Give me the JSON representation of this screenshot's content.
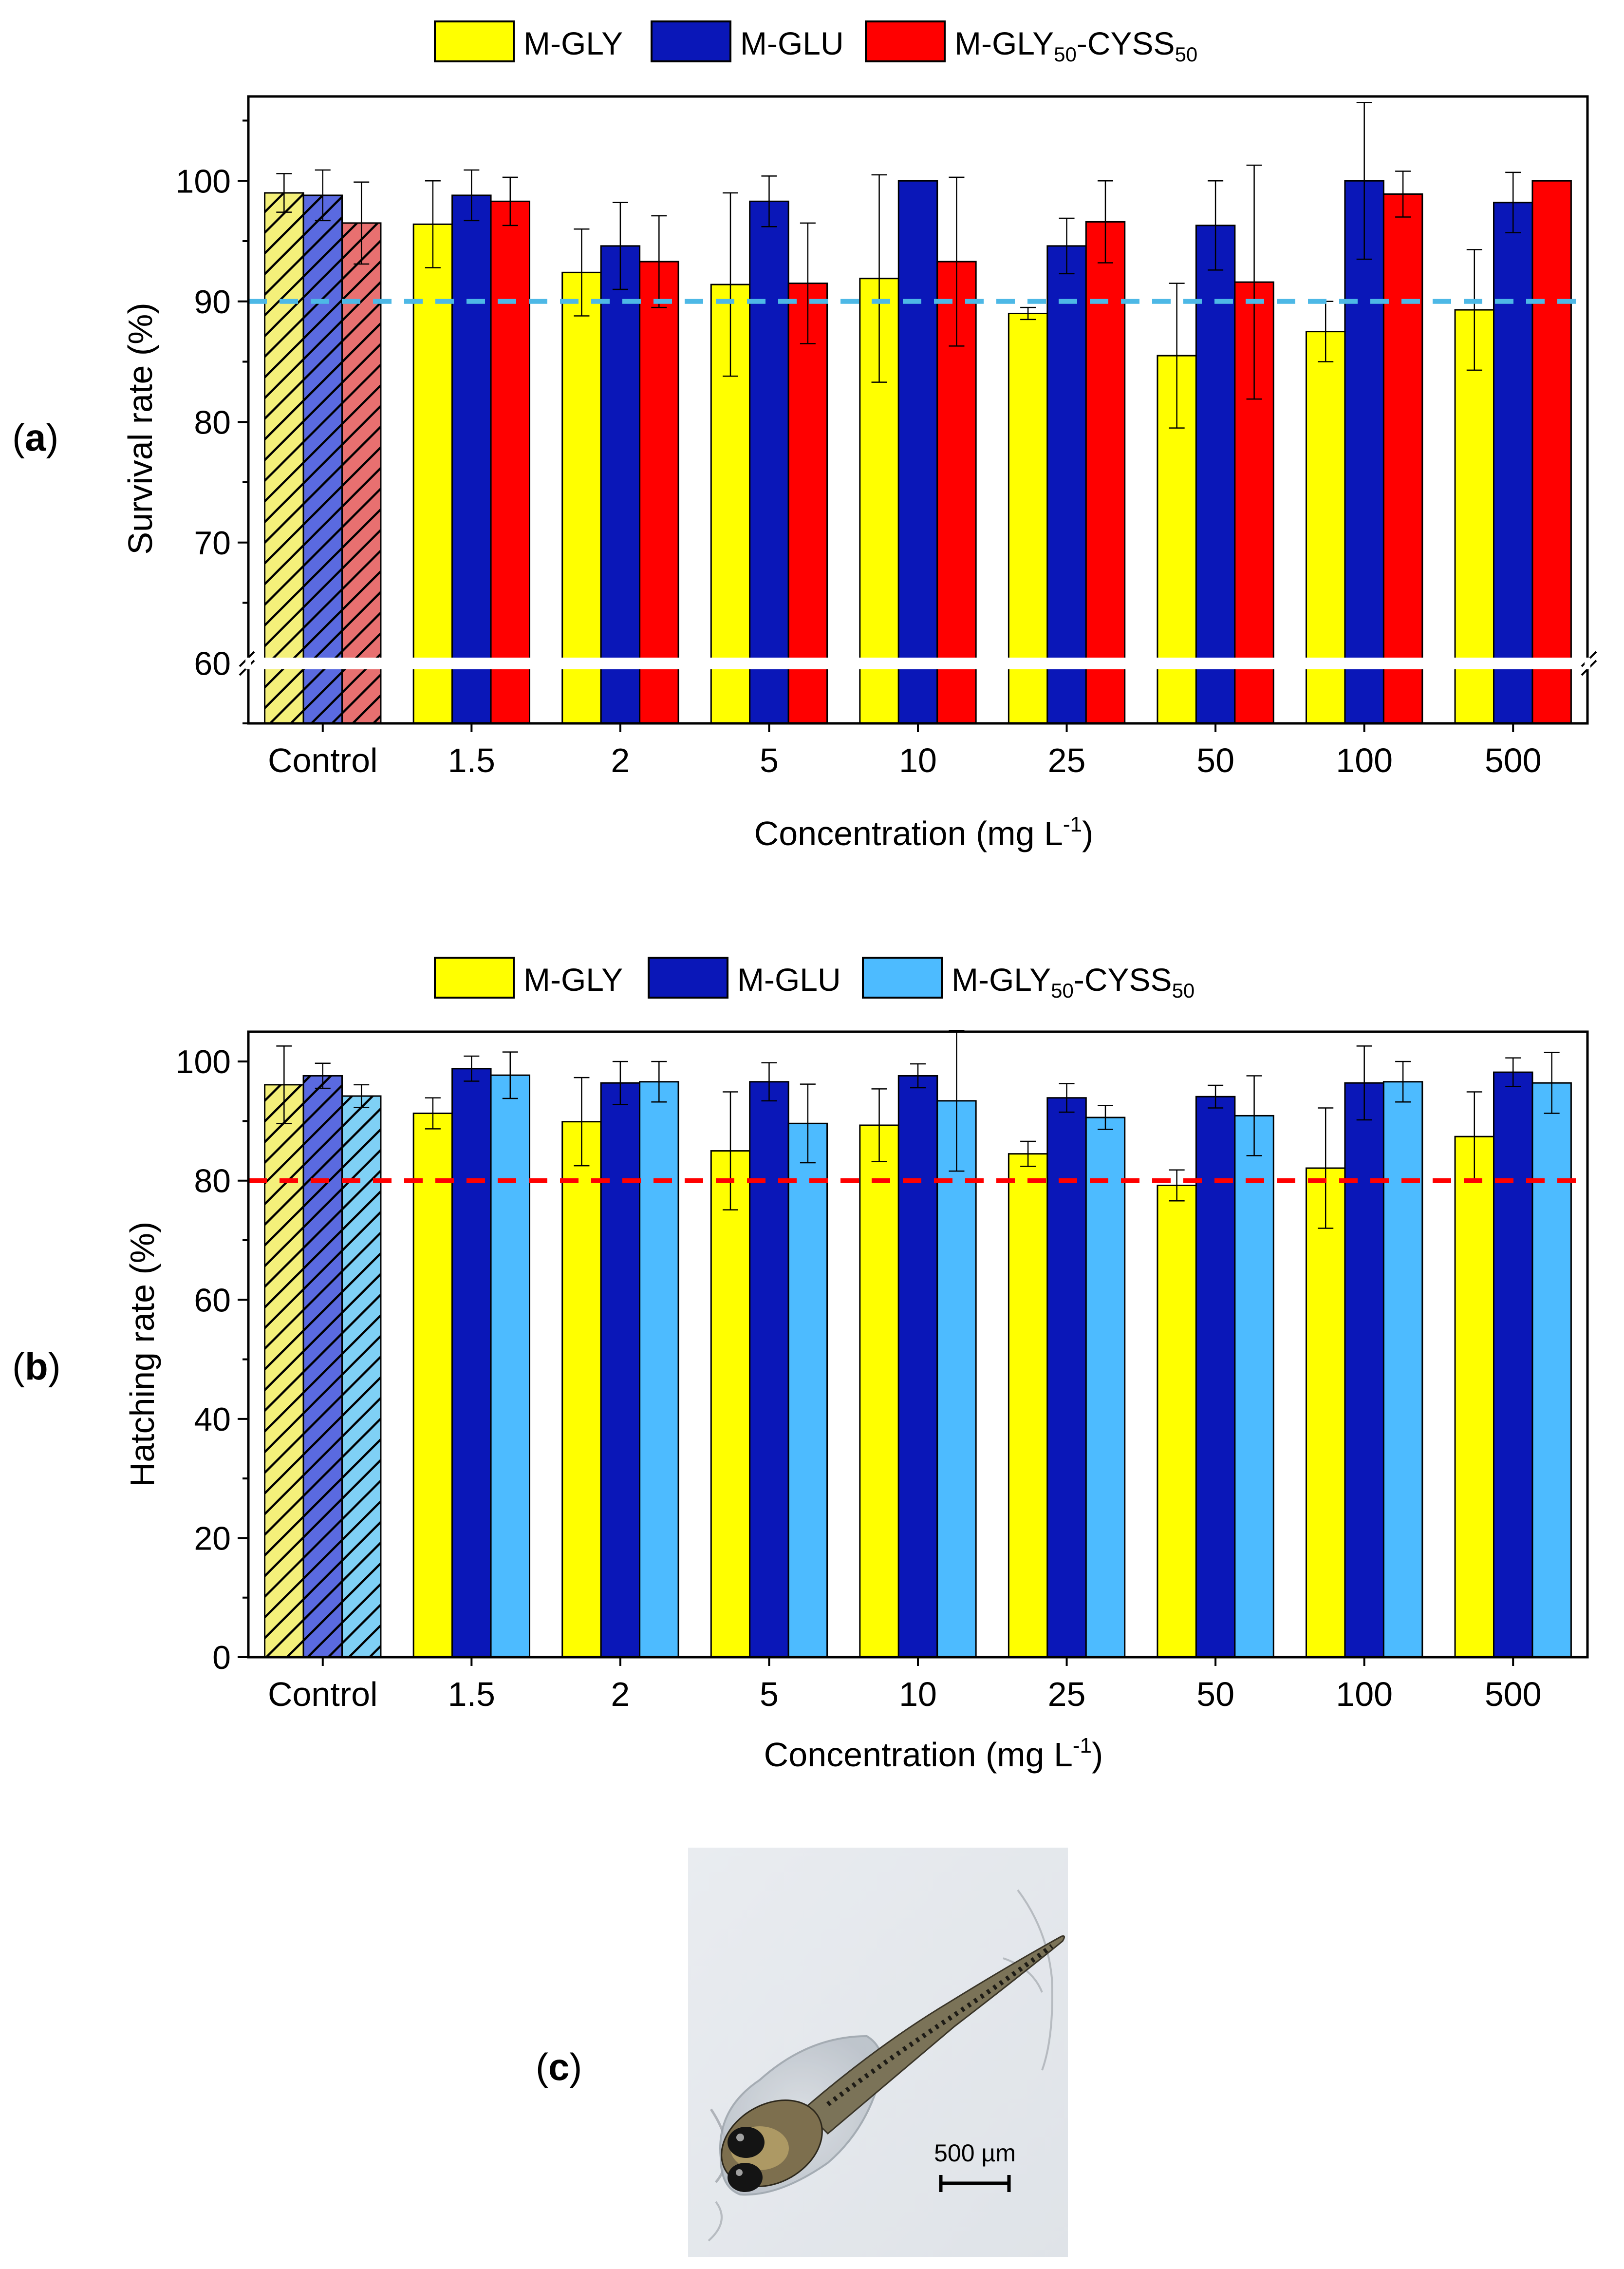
{
  "colors": {
    "m_gly": "#ffff00",
    "m_glu": "#0a17b8",
    "m_gly_cyss_red": "#ff0000",
    "m_gly_cyss_blue": "#4dbbff",
    "ref_line_a": "#4db8e6",
    "ref_line_b": "#ff0000",
    "ctrl_yellow": "#f4f07a",
    "ctrl_blue": "#5a6ae0",
    "ctrl_red": "#e87070",
    "ctrl_lightblue": "#7fd0f5"
  },
  "chart_data": [
    {
      "type": "bar",
      "panel_label": "a",
      "xlabel": "Concentration (mg L",
      "xlabel_sup": "-1",
      "xlabel_close": ")",
      "ylabel": "Survival rate (%)",
      "ylim": [
        55,
        107
      ],
      "axis_break_at": 60,
      "yticks": [
        60,
        70,
        80,
        90,
        100
      ],
      "reference_line": 90,
      "legend_position": "top",
      "categories": [
        "Control",
        "1.5",
        "2",
        "5",
        "10",
        "25",
        "50",
        "100",
        "500"
      ],
      "series": [
        {
          "name": "M-GLY",
          "base": "M-GLY",
          "color_key": "m_gly",
          "values": [
            99.0,
            96.4,
            92.4,
            91.4,
            91.9,
            89.0,
            85.5,
            87.5,
            89.3
          ],
          "errors": [
            1.6,
            3.6,
            3.6,
            7.6,
            8.6,
            0.5,
            6.0,
            2.5,
            5.0
          ]
        },
        {
          "name": "M-GLU",
          "base": "M-GLU",
          "color_key": "m_glu",
          "values": [
            98.8,
            98.8,
            94.6,
            98.3,
            100.0,
            94.6,
            96.3,
            100.0,
            98.2
          ],
          "errors": [
            2.1,
            2.1,
            3.6,
            2.1,
            0.0,
            2.3,
            3.7,
            6.5,
            2.5
          ]
        },
        {
          "name": "M-GLY50-CYSS50",
          "base": "M-GLY",
          "sub1": "50",
          "mid": "-CYSS",
          "sub2": "50",
          "color_key": "m_gly_cyss_red",
          "values": [
            96.5,
            98.3,
            93.3,
            91.5,
            93.3,
            96.6,
            91.6,
            98.9,
            100.0
          ],
          "errors": [
            3.4,
            2.0,
            3.8,
            5.0,
            7.0,
            3.4,
            9.7,
            1.9,
            0.0
          ]
        }
      ]
    },
    {
      "type": "bar",
      "panel_label": "b",
      "xlabel": "Concentration (mg L",
      "xlabel_sup": "-1",
      "xlabel_close": ")",
      "ylabel": "Hatching rate (%)",
      "ylim": [
        0,
        105
      ],
      "yticks": [
        0,
        20,
        40,
        60,
        80,
        100
      ],
      "reference_line": 80,
      "legend_position": "top",
      "categories": [
        "Control",
        "1.5",
        "2",
        "5",
        "10",
        "25",
        "50",
        "100",
        "500"
      ],
      "series": [
        {
          "name": "M-GLY",
          "base": "M-GLY",
          "color_key": "m_gly",
          "values": [
            96.1,
            91.3,
            89.9,
            85.0,
            89.3,
            84.5,
            79.2,
            82.1,
            87.4
          ],
          "errors": [
            6.5,
            2.6,
            7.4,
            9.9,
            6.1,
            2.1,
            2.6,
            10.1,
            7.5
          ]
        },
        {
          "name": "M-GLU",
          "base": "M-GLU",
          "color_key": "m_glu",
          "values": [
            97.6,
            98.8,
            96.4,
            96.6,
            97.6,
            93.9,
            94.1,
            96.4,
            98.2
          ],
          "errors": [
            2.1,
            2.1,
            3.6,
            3.2,
            2.0,
            2.4,
            1.9,
            6.2,
            2.4
          ]
        },
        {
          "name": "M-GLY50-CYSS50",
          "base": "M-GLY",
          "sub1": "50",
          "mid": "-CYSS",
          "sub2": "50",
          "color_key": "m_gly_cyss_blue",
          "values": [
            94.2,
            97.7,
            96.6,
            89.6,
            93.4,
            90.6,
            90.9,
            96.6,
            96.4
          ],
          "errors": [
            1.9,
            3.9,
            3.4,
            6.6,
            11.8,
            2.0,
            6.7,
            3.4,
            5.1
          ]
        }
      ]
    }
  ],
  "panel_c": {
    "label": "c",
    "scale_bar_text": "500 µm"
  }
}
